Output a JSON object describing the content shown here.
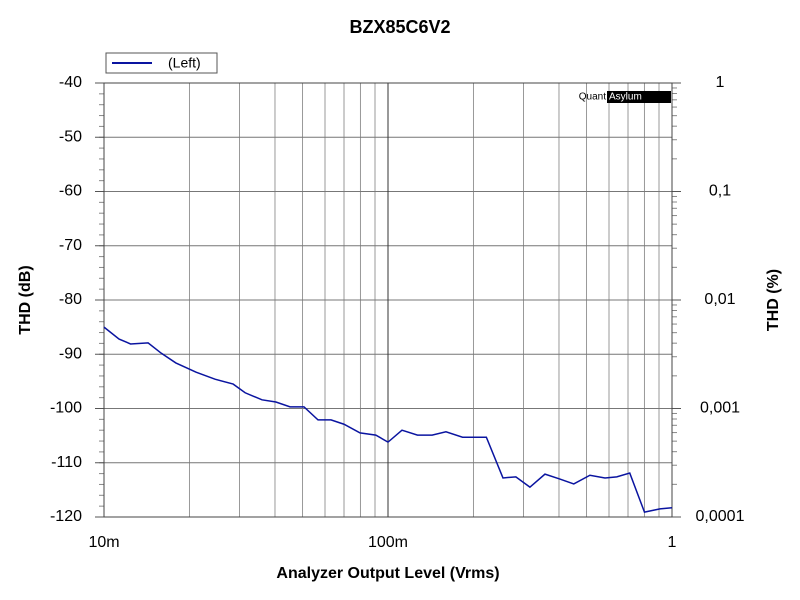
{
  "chart_data": {
    "type": "line",
    "title": "BZX85C6V2",
    "x_label": "Analyzer Output Level (Vrms)",
    "y_label": "THD (dB)",
    "y2_label": "THD (%)",
    "watermark": {
      "left": "Quant",
      "right": "Asylum"
    },
    "x_scale": "log",
    "y2_scale": "log",
    "grid": true,
    "legend": "top-left",
    "xlim": [
      0.01,
      1
    ],
    "xticks": [
      {
        "value": 0.01,
        "label": "10m"
      },
      {
        "value": 0.1,
        "label": "100m"
      },
      1
    ],
    "ylim": [
      -120,
      -40
    ],
    "yticks": [
      -40,
      -50,
      -60,
      -70,
      -80,
      -90,
      -100,
      -110,
      -120
    ],
    "y2lim": [
      0.0001,
      1
    ],
    "y2ticks": [
      1,
      {
        "value": 0.1,
        "label": "0,1"
      },
      {
        "value": 0.01,
        "label": "0,01"
      },
      {
        "value": 0.001,
        "label": "0,001"
      },
      {
        "value": 0.0001,
        "label": "0,0001"
      }
    ],
    "x": [
      0.01,
      0.0113,
      0.0124,
      0.0143,
      0.0159,
      0.0179,
      0.0211,
      0.0246,
      0.0285,
      0.0314,
      0.036,
      0.0403,
      0.0452,
      0.0506,
      0.0567,
      0.063,
      0.07,
      0.0797,
      0.0906,
      0.1,
      0.112,
      0.127,
      0.143,
      0.16,
      0.183,
      0.222,
      0.254,
      0.282,
      0.316,
      0.357,
      0.403,
      0.451,
      0.514,
      0.581,
      0.639,
      0.71,
      0.8,
      0.907,
      1
    ],
    "series": [
      {
        "name": "(Left)",
        "color": "#0a14a0",
        "values": [
          -85,
          -87.2,
          -88.1,
          -87.9,
          -89.8,
          -91.6,
          -93.3,
          -94.6,
          -95.5,
          -97.1,
          -98.4,
          -98.8,
          -99.7,
          -99.7,
          -102.1,
          -102.1,
          -102.9,
          -104.5,
          -104.9,
          -106.2,
          -104,
          -104.9,
          -104.9,
          -104.3,
          -105.3,
          -105.3,
          -112.8,
          -112.6,
          -114.5,
          -112.1,
          -113,
          -113.9,
          -112.3,
          -112.8,
          -112.6,
          -111.9,
          -119.1,
          -118.5,
          -118.3
        ]
      }
    ]
  }
}
